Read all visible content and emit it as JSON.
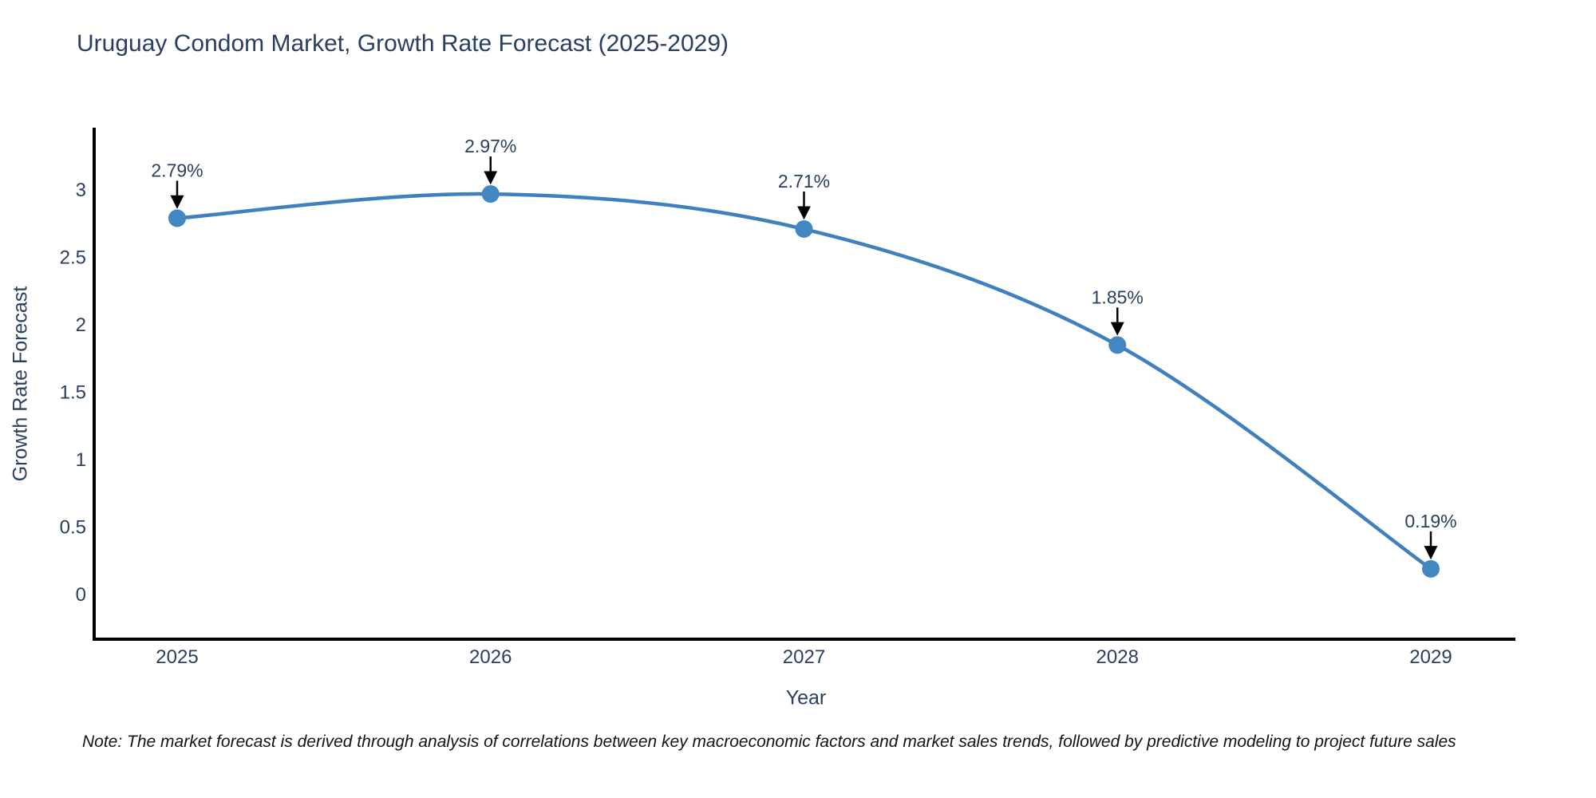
{
  "chart_data": {
    "type": "line",
    "title": "Uruguay Condom Market, Growth Rate Forecast (2025-2029)",
    "xlabel": "Year",
    "ylabel": "Growth Rate Forecast",
    "x": [
      2025,
      2026,
      2027,
      2028,
      2029
    ],
    "values": [
      2.79,
      2.97,
      2.71,
      1.85,
      0.19
    ],
    "point_labels": [
      "2.79%",
      "2.97%",
      "2.71%",
      "1.85%",
      "0.19%"
    ],
    "yticks": [
      0,
      0.5,
      1,
      1.5,
      2,
      2.5,
      3
    ],
    "xtick_labels": [
      "2025",
      "2026",
      "2027",
      "2028",
      "2029"
    ],
    "ylim": [
      -0.33,
      3.46
    ],
    "grid": false,
    "legend": "none",
    "line_shape": "spline",
    "colors": {
      "line": "#3f80bd",
      "marker": "#4287c2",
      "axis": "#000000",
      "text": "#2a3f5f",
      "annotation_text": "#2a3f5f",
      "arrow": "#000000",
      "background": "#ffffff"
    }
  },
  "note": "Note: The market forecast is derived through analysis of correlations between key macroeconomic factors and market sales trends, followed by predictive modeling to project future sales"
}
